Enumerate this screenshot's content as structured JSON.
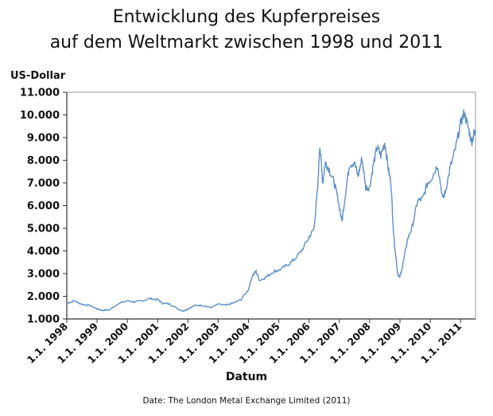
{
  "title_line1": "Entwicklung des Kupferpreises",
  "title_line2": "auf dem Weltmarkt zwischen 1998 und 2011",
  "source": "Date: The London Metal Exchange Limited (2011)",
  "chart_data": {
    "type": "line",
    "title": "Entwicklung des Kupferpreises auf dem Weltmarkt zwischen 1998 und 2011",
    "xlabel": "Datum",
    "ylabel": "US-Dollar",
    "ylim": [
      1000,
      11000
    ],
    "xlim": [
      "1998-01-01",
      "2011-07-01"
    ],
    "grid": true,
    "line_color": "#5b8fc9",
    "y_ticks": [
      "1.000",
      "2.000",
      "3.000",
      "4.000",
      "5.000",
      "6.000",
      "7.000",
      "8.000",
      "9.000",
      "10.000",
      "11.000"
    ],
    "x_ticks": [
      "1.1. 1998",
      "1.1. 1999",
      "1.1. 2000",
      "1.1. 2001",
      "1.1. 2002",
      "1.1. 2003",
      "1.1. 2004",
      "1.1. 2005",
      "1.1. 2006",
      "1.1. 2007",
      "1.1. 2008",
      "1.1. 2009",
      "1.1. 2010",
      "1.1. 2011"
    ],
    "series": [
      {
        "values": [
          [
            "1998-01-01",
            1700
          ],
          [
            "1998-04-01",
            1800
          ],
          [
            "1998-07-01",
            1650
          ],
          [
            "1998-10-01",
            1600
          ],
          [
            "1999-01-01",
            1450
          ],
          [
            "1999-03-01",
            1380
          ],
          [
            "1999-06-01",
            1400
          ],
          [
            "1999-09-01",
            1650
          ],
          [
            "2000-01-01",
            1800
          ],
          [
            "2000-04-01",
            1750
          ],
          [
            "2000-07-01",
            1800
          ],
          [
            "2000-10-01",
            1900
          ],
          [
            "2001-01-01",
            1850
          ],
          [
            "2001-03-01",
            1700
          ],
          [
            "2001-06-01",
            1650
          ],
          [
            "2001-09-01",
            1450
          ],
          [
            "2001-11-01",
            1350
          ],
          [
            "2002-01-01",
            1450
          ],
          [
            "2002-04-01",
            1600
          ],
          [
            "2002-07-01",
            1600
          ],
          [
            "2002-10-01",
            1500
          ],
          [
            "2003-01-01",
            1650
          ],
          [
            "2003-04-01",
            1600
          ],
          [
            "2003-07-01",
            1700
          ],
          [
            "2003-10-01",
            1850
          ],
          [
            "2004-01-01",
            2300
          ],
          [
            "2004-02-15",
            2900
          ],
          [
            "2004-04-01",
            3100
          ],
          [
            "2004-05-15",
            2700
          ],
          [
            "2004-08-01",
            2850
          ],
          [
            "2004-11-01",
            3100
          ],
          [
            "2005-01-01",
            3150
          ],
          [
            "2005-04-01",
            3350
          ],
          [
            "2005-07-01",
            3600
          ],
          [
            "2005-10-01",
            4000
          ],
          [
            "2006-01-01",
            4600
          ],
          [
            "2006-03-01",
            5000
          ],
          [
            "2006-04-15",
            6800
          ],
          [
            "2006-05-10",
            8700
          ],
          [
            "2006-06-15",
            7000
          ],
          [
            "2006-07-15",
            7900
          ],
          [
            "2006-09-01",
            7600
          ],
          [
            "2006-11-01",
            7000
          ],
          [
            "2006-12-15",
            6300
          ],
          [
            "2007-02-01",
            5300
          ],
          [
            "2007-03-15",
            6500
          ],
          [
            "2007-05-01",
            7800
          ],
          [
            "2007-07-01",
            7900
          ],
          [
            "2007-08-15",
            7300
          ],
          [
            "2007-10-01",
            8100
          ],
          [
            "2007-11-15",
            6800
          ],
          [
            "2008-01-01",
            6800
          ],
          [
            "2008-02-15",
            7800
          ],
          [
            "2008-04-01",
            8600
          ],
          [
            "2008-05-15",
            8200
          ],
          [
            "2008-07-01",
            8800
          ],
          [
            "2008-08-15",
            7600
          ],
          [
            "2008-09-15",
            7000
          ],
          [
            "2008-10-15",
            4800
          ],
          [
            "2008-12-01",
            3100
          ],
          [
            "2008-12-25",
            2800
          ],
          [
            "2009-02-01",
            3300
          ],
          [
            "2009-04-01",
            4500
          ],
          [
            "2009-06-01",
            5100
          ],
          [
            "2009-08-01",
            6200
          ],
          [
            "2009-10-01",
            6300
          ],
          [
            "2009-12-01",
            7000
          ],
          [
            "2010-01-15",
            7200
          ],
          [
            "2010-04-01",
            7800
          ],
          [
            "2010-06-01",
            6300
          ],
          [
            "2010-07-01",
            6600
          ],
          [
            "2010-09-01",
            7700
          ],
          [
            "2010-11-01",
            8500
          ],
          [
            "2011-01-01",
            9600
          ],
          [
            "2011-02-15",
            10100
          ],
          [
            "2011-04-01",
            9500
          ],
          [
            "2011-05-15",
            8800
          ],
          [
            "2011-06-15",
            9200
          ],
          [
            "2011-07-01",
            9300
          ]
        ]
      }
    ]
  }
}
